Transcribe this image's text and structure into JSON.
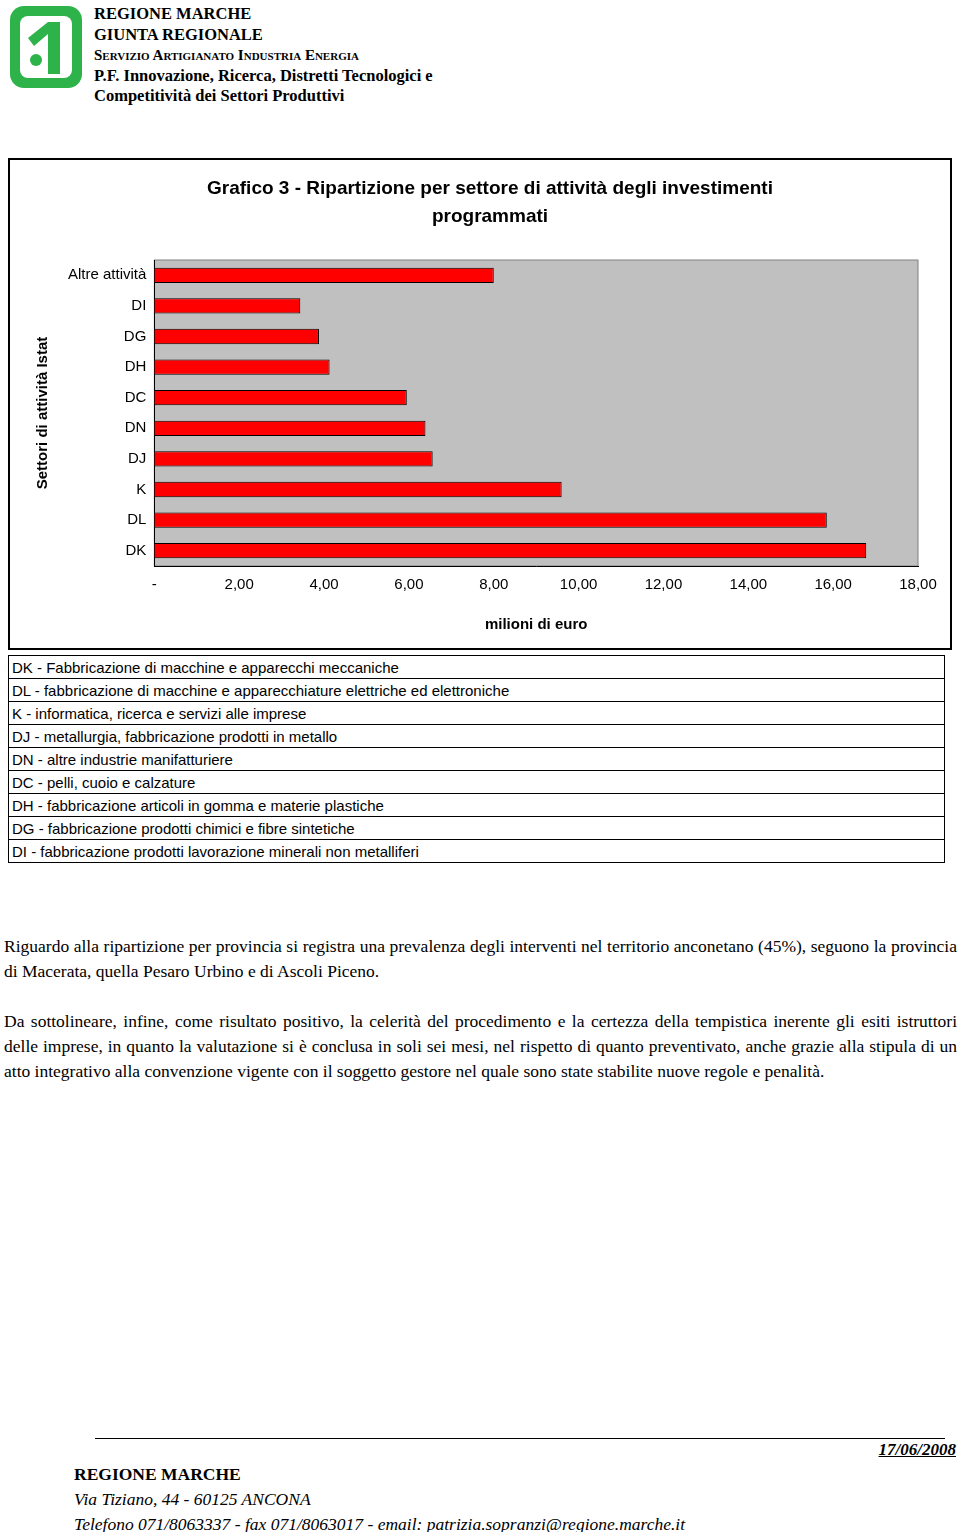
{
  "header": {
    "lines": [
      "REGIONE MARCHE",
      "GIUNTA REGIONALE",
      "Servizio Artigianato Industria Energia",
      "P.F. Innovazione, Ricerca, Distretti Tecnologici e",
      "Competitività dei Settori Produttivi"
    ]
  },
  "chart_data": {
    "type": "bar",
    "orientation": "horizontal",
    "title": "Grafico 3 - Ripartizione per settore di attività degli investimenti programmati",
    "x_label": "milioni di euro",
    "y_label": "Settori di attività Istat",
    "categories": [
      "Altre attività",
      "DI",
      "DG",
      "DH",
      "DC",
      "DN",
      "DJ",
      "K",
      "DL",
      "DK"
    ],
    "values": [
      8.0,
      3.44,
      3.88,
      4.13,
      5.95,
      6.39,
      6.56,
      9.6,
      15.85,
      16.78
    ],
    "color": "#ff0000",
    "xlim": [
      0,
      18
    ],
    "xticks": [
      {
        "value": 0,
        "label": "-"
      },
      {
        "value": 2,
        "label": "2,00"
      },
      {
        "value": 4,
        "label": "4,00"
      },
      {
        "value": 6,
        "label": "6,00"
      },
      {
        "value": 8,
        "label": "8,00"
      },
      {
        "value": 10,
        "label": "10,00"
      },
      {
        "value": 12,
        "label": "12,00"
      },
      {
        "value": 14,
        "label": "14,00"
      },
      {
        "value": 16,
        "label": "16,00"
      },
      {
        "value": 18,
        "label": "18,00"
      }
    ],
    "grid": false
  },
  "legend_table": [
    "DK - Fabbricazione di macchine e apparecchi meccaniche",
    "DL - fabbricazione di macchine e apparecchiature elettriche ed elettroniche",
    "K - informatica, ricerca e servizi alle imprese",
    "DJ - metallurgia, fabbricazione prodotti in metallo",
    "DN - altre industrie manifatturiere",
    "DC - pelli, cuoio e calzature",
    "DH - fabbricazione articoli in gomma e materie plastiche",
    "DG - fabbricazione prodotti chimici e fibre sintetiche",
    "DI - fabbricazione prodotti lavorazione minerali non metalliferi"
  ],
  "paragraphs": [
    "Riguardo alla ripartizione per provincia si registra una prevalenza degli interventi nel territorio anconetano (45%), seguono la provincia di Macerata, quella Pesaro Urbino e di Ascoli Piceno.",
    "Da sottolineare, infine, come risultato positivo, la celerità del procedimento e la certezza della tempistica inerente gli esiti istruttori delle imprese, in quanto la valutazione si è conclusa in soli sei mesi, nel rispetto di quanto preventivato, anche grazie alla stipula di un atto integrativo alla convenzione vigente con il soggetto gestore nel quale sono state stabilite nuove regole e penalità."
  ],
  "footer": {
    "date": "17/06/2008",
    "lines": [
      "REGIONE MARCHE",
      "Via Tiziano, 44 - 60125 ANCONA",
      "Telefono 071/8063337 - fax 071/8063017 - email: patrizia.sopranzi@regione.marche.it"
    ]
  }
}
